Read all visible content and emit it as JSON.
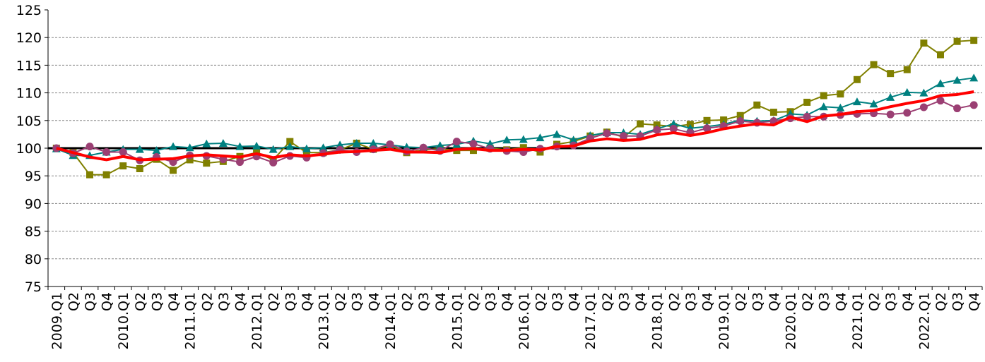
{
  "chart_data": {
    "type": "line",
    "title": "",
    "xlabel": "",
    "ylabel": "",
    "ylim": [
      75,
      125
    ],
    "yticks": [
      75,
      80,
      85,
      90,
      95,
      100,
      105,
      110,
      115,
      120,
      125
    ],
    "grid": "horizontal-dashed",
    "reference_line": 100,
    "categories": [
      "2009.Q1",
      "Q2",
      "Q3",
      "Q4",
      "2010.Q1",
      "Q2",
      "Q3",
      "Q4",
      "2011.Q1",
      "Q2",
      "Q3",
      "Q4",
      "2012.Q1",
      "Q2",
      "Q3",
      "Q4",
      "2013.Q1",
      "Q2",
      "Q3",
      "Q4",
      "2014.Q1",
      "Q2",
      "Q3",
      "Q4",
      "2015.Q1",
      "Q2",
      "Q3",
      "Q4",
      "2016.Q1",
      "Q2",
      "Q3",
      "Q4",
      "2017.Q1",
      "Q2",
      "Q3",
      "Q4",
      "2018.Q1",
      "Q2",
      "Q3",
      "Q4",
      "2019.Q1",
      "Q2",
      "Q3",
      "Q4",
      "2020.Q1",
      "Q2",
      "Q3",
      "Q4",
      "2021.Q1",
      "Q2",
      "Q3",
      "Q4",
      "2022.Q1",
      "Q2",
      "Q3",
      "Q4"
    ],
    "series": [
      {
        "color": "#808000",
        "marker": "square",
        "values": [
          100.0,
          99.2,
          95.2,
          95.2,
          96.8,
          96.3,
          98.0,
          96.0,
          97.9,
          97.3,
          97.6,
          98.5,
          99.2,
          97.9,
          101.2,
          99.2,
          99.2,
          99.7,
          100.9,
          99.8,
          100.5,
          99.2,
          99.7,
          99.9,
          99.6,
          99.6,
          100.0,
          99.7,
          100.1,
          99.3,
          100.7,
          101.2,
          102.2,
          102.9,
          102.0,
          104.4,
          104.2,
          103.9,
          104.3,
          105.0,
          105.1,
          105.9,
          107.8,
          106.5,
          106.6,
          108.3,
          109.5,
          109.8,
          112.4,
          115.1,
          113.5,
          114.2,
          119.0,
          116.9,
          119.3,
          119.5
        ]
      },
      {
        "color": "#008080",
        "marker": "triangle",
        "values": [
          99.9,
          98.7,
          98.7,
          99.3,
          99.8,
          99.8,
          99.6,
          100.3,
          100.1,
          100.8,
          100.9,
          100.3,
          100.4,
          99.8,
          100.3,
          99.9,
          100.1,
          100.6,
          100.9,
          100.9,
          100.6,
          100.2,
          100.1,
          100.5,
          100.7,
          101.3,
          100.8,
          101.5,
          101.6,
          101.9,
          102.5,
          101.5,
          102.3,
          102.8,
          102.8,
          102.5,
          103.5,
          104.4,
          103.6,
          103.9,
          104.3,
          105.1,
          104.9,
          105.0,
          106.2,
          106.0,
          107.5,
          107.3,
          108.4,
          108.0,
          109.2,
          110.1,
          110.0,
          111.7,
          112.3,
          112.7
        ]
      },
      {
        "color": "#9b3f73",
        "marker": "circle",
        "values": [
          100.0,
          99.1,
          100.3,
          99.3,
          99.3,
          97.8,
          98.4,
          97.5,
          98.7,
          98.6,
          98.0,
          97.5,
          98.5,
          97.4,
          98.6,
          98.3,
          99.1,
          99.7,
          99.3,
          99.8,
          100.7,
          99.4,
          100.1,
          99.5,
          101.2,
          100.8,
          99.9,
          99.5,
          99.3,
          99.9,
          100.3,
          100.5,
          101.8,
          102.7,
          102.2,
          102.2,
          103.3,
          103.5,
          102.8,
          103.6,
          104.0,
          104.9,
          104.6,
          104.9,
          105.4,
          105.7,
          105.7,
          106.0,
          106.2,
          106.3,
          106.1,
          106.4,
          107.4,
          108.6,
          107.2,
          107.8
        ]
      },
      {
        "color": "#ff0000",
        "marker": "none",
        "values": [
          100.0,
          99.2,
          98.4,
          97.9,
          98.5,
          97.9,
          98.0,
          98.1,
          98.6,
          98.8,
          98.6,
          98.4,
          99.0,
          98.3,
          98.8,
          98.6,
          98.9,
          99.3,
          99.4,
          99.6,
          99.8,
          99.3,
          99.3,
          99.2,
          99.8,
          99.9,
          99.6,
          99.6,
          99.8,
          99.7,
          100.3,
          100.4,
          101.3,
          101.7,
          101.4,
          101.6,
          102.4,
          102.8,
          102.3,
          102.8,
          103.5,
          104.0,
          104.4,
          104.2,
          105.6,
          104.8,
          105.8,
          106.1,
          106.6,
          106.8,
          107.5,
          108.1,
          108.6,
          109.5,
          109.7,
          110.2
        ]
      }
    ]
  }
}
